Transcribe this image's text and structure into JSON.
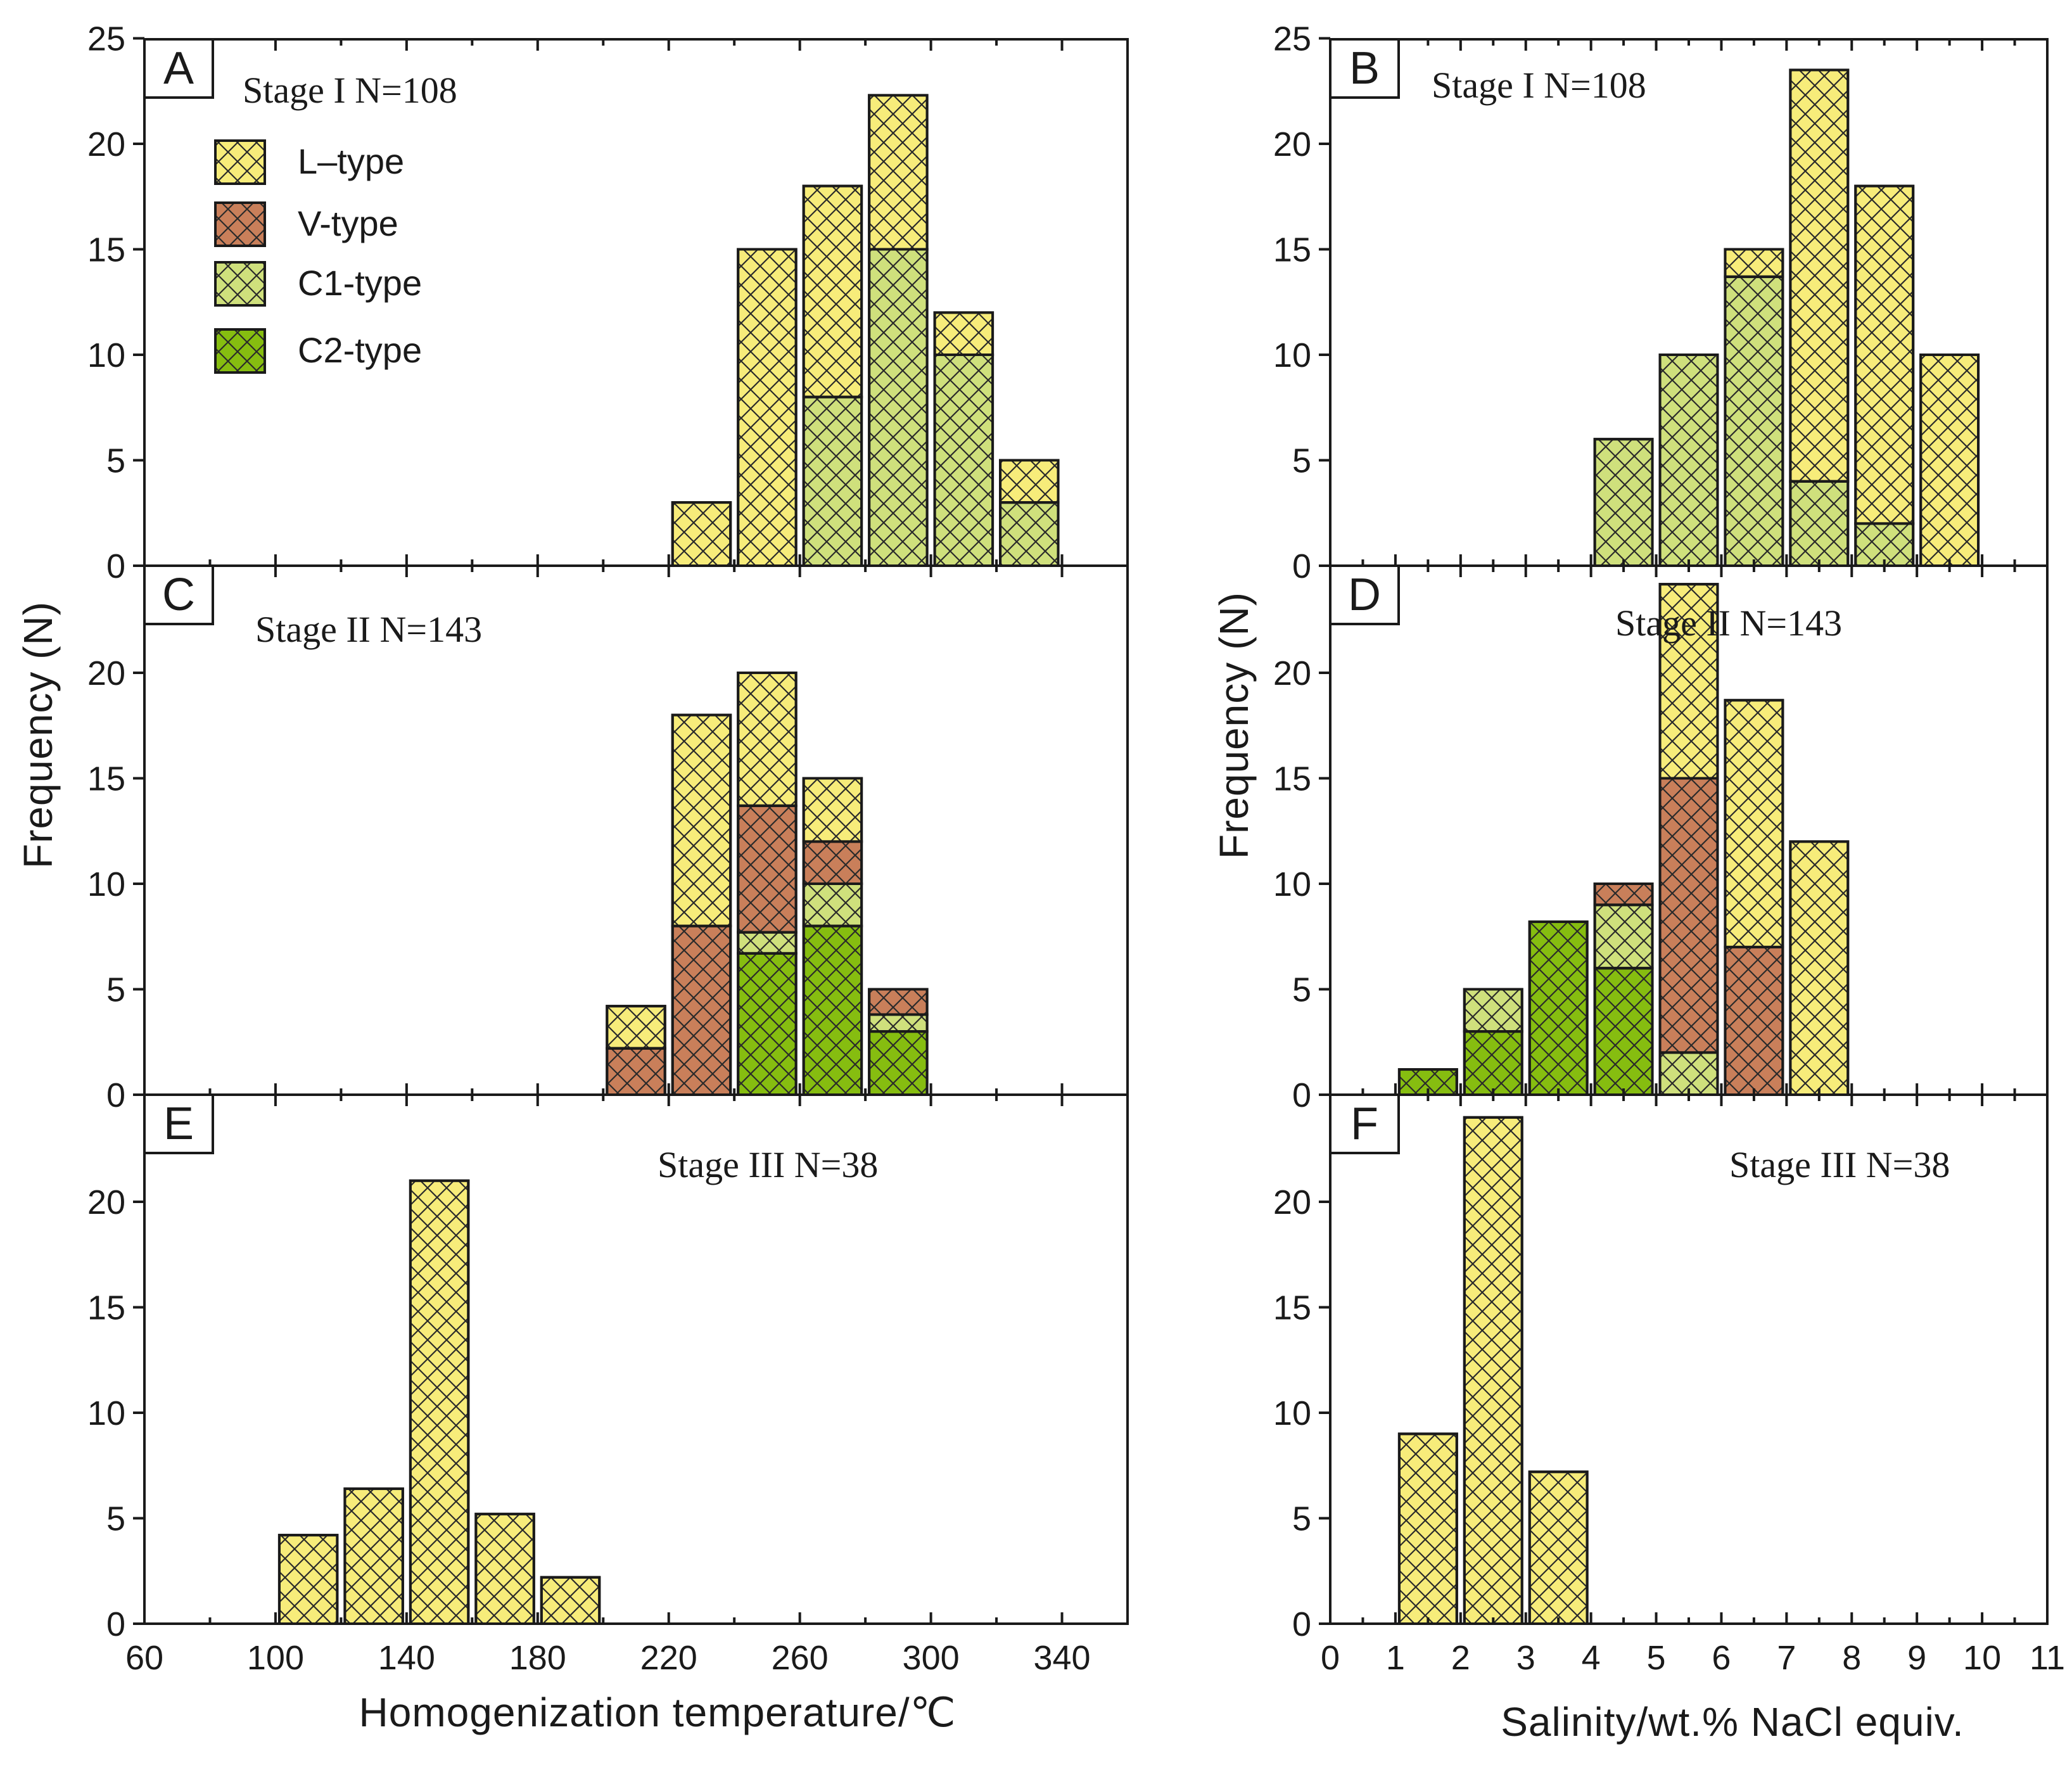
{
  "figure": {
    "y_axis_title": "Frequency (N)",
    "left_x_title": "Homogenization temperature/℃",
    "right_x_title": "Salinity/wt.% NaCl equiv."
  },
  "legend": [
    {
      "key": "L",
      "label": "L–type",
      "color": "#f7ec7a"
    },
    {
      "key": "V",
      "label": "V-type",
      "color": "#c97f5a"
    },
    {
      "key": "C1",
      "label": "C1-type",
      "color": "#cfe07c"
    },
    {
      "key": "C2",
      "label": "C2-type",
      "color": "#86bd10"
    }
  ],
  "axes": {
    "temperature": {
      "ticks": [
        "60",
        "100",
        "140",
        "180",
        "220",
        "260",
        "300",
        "340"
      ],
      "values": [
        60,
        100,
        140,
        180,
        220,
        260,
        300,
        340
      ],
      "xlim": [
        60,
        360
      ]
    },
    "salinity": {
      "ticks": [
        "0",
        "1",
        "2",
        "3",
        "4",
        "5",
        "6",
        "7",
        "8",
        "9",
        "10",
        "11"
      ],
      "values": [
        0,
        1,
        2,
        3,
        4,
        5,
        6,
        7,
        8,
        9,
        10,
        11
      ],
      "xlim": [
        0,
        11
      ]
    },
    "y_ticks_top": {
      "ticks": [
        "0",
        "5",
        "10",
        "15",
        "20",
        "25"
      ],
      "values": [
        0,
        5,
        10,
        15,
        20,
        25
      ]
    },
    "y_ticks_lower": {
      "ticks": [
        "0",
        "5",
        "10",
        "15",
        "20"
      ],
      "values": [
        0,
        5,
        10,
        15,
        20
      ]
    }
  },
  "chart_data": [
    {
      "panel": "A",
      "type": "bar",
      "stacked": true,
      "stage_label": "Stage I N=108",
      "xlabel": "Homogenization temperature/℃",
      "ylabel": "Frequency (N)",
      "xlim": [
        60,
        360
      ],
      "ylim": [
        0,
        25
      ],
      "bin_width": 20,
      "bars": [
        {
          "x": 220,
          "L": 3,
          "V": 0,
          "C1": 0,
          "C2": 0
        },
        {
          "x": 240,
          "L": 15,
          "V": 0,
          "C1": 0,
          "C2": 0
        },
        {
          "x": 260,
          "L": 10,
          "V": 0,
          "C1": 8,
          "C2": 0
        },
        {
          "x": 280,
          "L": 7.3,
          "V": 0,
          "C1": 15,
          "C2": 0
        },
        {
          "x": 300,
          "L": 2,
          "V": 0,
          "C1": 10,
          "C2": 0
        },
        {
          "x": 320,
          "L": 2,
          "V": 0,
          "C1": 3,
          "C2": 0
        }
      ]
    },
    {
      "panel": "B",
      "type": "bar",
      "stacked": true,
      "stage_label": "Stage I N=108",
      "xlabel": "Salinity/wt.% NaCl equiv.",
      "ylabel": "Frequency (N)",
      "xlim": [
        0,
        11
      ],
      "ylim": [
        0,
        25
      ],
      "bin_width": 1,
      "bars": [
        {
          "x": 4,
          "L": 0,
          "V": 0,
          "C1": 6,
          "C2": 0
        },
        {
          "x": 5,
          "L": 0,
          "V": 0,
          "C1": 10,
          "C2": 0
        },
        {
          "x": 6,
          "L": 1.3,
          "V": 0,
          "C1": 13.7,
          "C2": 0
        },
        {
          "x": 7,
          "L": 19.5,
          "V": 0,
          "C1": 4,
          "C2": 0
        },
        {
          "x": 8,
          "L": 16,
          "V": 0,
          "C1": 2,
          "C2": 0
        },
        {
          "x": 9,
          "L": 10,
          "V": 0,
          "C1": 0,
          "C2": 0
        }
      ]
    },
    {
      "panel": "C",
      "type": "bar",
      "stacked": true,
      "stage_label": "Stage II N=143",
      "xlabel": "Homogenization temperature/℃",
      "ylabel": "Frequency (N)",
      "xlim": [
        60,
        360
      ],
      "ylim": [
        0,
        25
      ],
      "bin_width": 20,
      "bars": [
        {
          "x": 200,
          "L": 2,
          "V": 2.2,
          "C1": 0,
          "C2": 0
        },
        {
          "x": 220,
          "L": 10,
          "V": 8,
          "C1": 0,
          "C2": 0
        },
        {
          "x": 240,
          "L": 6.3,
          "V": 6,
          "C1": 1,
          "C2": 6.7
        },
        {
          "x": 260,
          "L": 3,
          "V": 2,
          "C1": 2,
          "C2": 8
        },
        {
          "x": 280,
          "L": 0,
          "V": 1.2,
          "C1": 0.8,
          "C2": 3
        }
      ]
    },
    {
      "panel": "D",
      "type": "bar",
      "stacked": true,
      "stage_label": "Stage II N=143",
      "xlabel": "Salinity/wt.% NaCl equiv.",
      "ylabel": "Frequency (N)",
      "xlim": [
        0,
        11
      ],
      "ylim": [
        0,
        25
      ],
      "bin_width": 1,
      "bars": [
        {
          "x": 1,
          "L": 0,
          "V": 0,
          "C1": 0,
          "C2": 1.2
        },
        {
          "x": 2,
          "L": 0,
          "V": 0,
          "C1": 2,
          "C2": 3
        },
        {
          "x": 3,
          "L": 0,
          "V": 0,
          "C1": 0,
          "C2": 8.2
        },
        {
          "x": 4,
          "L": 0,
          "V": 1,
          "C1": 3,
          "C2": 6
        },
        {
          "x": 5,
          "L": 9.2,
          "V": 13,
          "C1": 2,
          "C2": 0
        },
        {
          "x": 6,
          "L": 11.7,
          "V": 7,
          "C1": 0,
          "C2": 0
        },
        {
          "x": 7,
          "L": 12,
          "V": 0,
          "C1": 0,
          "C2": 0
        }
      ]
    },
    {
      "panel": "E",
      "type": "bar",
      "stacked": true,
      "stage_label": "Stage III N=38",
      "xlabel": "Homogenization temperature/℃",
      "ylabel": "Frequency (N)",
      "xlim": [
        60,
        360
      ],
      "ylim": [
        0,
        25
      ],
      "bin_width": 20,
      "bars": [
        {
          "x": 100,
          "L": 4.2,
          "V": 0,
          "C1": 0,
          "C2": 0
        },
        {
          "x": 120,
          "L": 6.4,
          "V": 0,
          "C1": 0,
          "C2": 0
        },
        {
          "x": 140,
          "L": 21,
          "V": 0,
          "C1": 0,
          "C2": 0
        },
        {
          "x": 160,
          "L": 5.2,
          "V": 0,
          "C1": 0,
          "C2": 0
        },
        {
          "x": 180,
          "L": 2.2,
          "V": 0,
          "C1": 0,
          "C2": 0
        }
      ]
    },
    {
      "panel": "F",
      "type": "bar",
      "stacked": true,
      "stage_label": "Stage III N=38",
      "xlabel": "Salinity/wt.% NaCl equiv.",
      "ylabel": "Frequency (N)",
      "xlim": [
        0,
        11
      ],
      "ylim": [
        0,
        25
      ],
      "bin_width": 1,
      "bars": [
        {
          "x": 1,
          "L": 9,
          "V": 0,
          "C1": 0,
          "C2": 0
        },
        {
          "x": 2,
          "L": 24,
          "V": 0,
          "C1": 0,
          "C2": 0
        },
        {
          "x": 3,
          "L": 7.2,
          "V": 0,
          "C1": 0,
          "C2": 0
        }
      ]
    }
  ]
}
